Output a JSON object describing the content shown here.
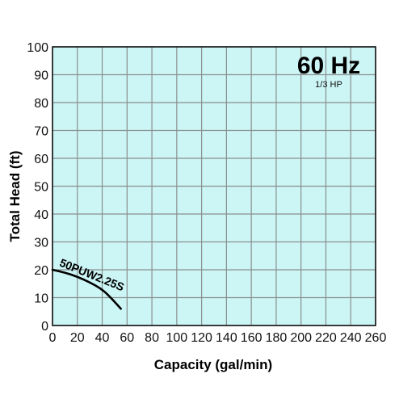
{
  "chart_data": {
    "type": "line",
    "title": "60 Hz",
    "subtitle": "1/3 HP",
    "xlabel": "Capacity (gal/min)",
    "ylabel": "Total Head (ft)",
    "xlim": [
      0,
      260
    ],
    "ylim": [
      0,
      100
    ],
    "x_ticks": [
      "0",
      "20",
      "40",
      "60",
      "80",
      "100",
      "120",
      "140",
      "160",
      "180",
      "200",
      "220",
      "240",
      "260"
    ],
    "y_ticks": [
      "0",
      "10",
      "20",
      "30",
      "40",
      "50",
      "60",
      "70",
      "80",
      "90",
      "100"
    ],
    "grid": true,
    "background_color": "#ccf5f5",
    "grid_color": "#8a8f8f",
    "series": [
      {
        "name": "50PUW2.25S",
        "color": "#000000",
        "points": [
          [
            0,
            20
          ],
          [
            10,
            19
          ],
          [
            20,
            17.5
          ],
          [
            30,
            15.5
          ],
          [
            40,
            13
          ],
          [
            48,
            9.5
          ],
          [
            55,
            6
          ]
        ]
      }
    ]
  }
}
